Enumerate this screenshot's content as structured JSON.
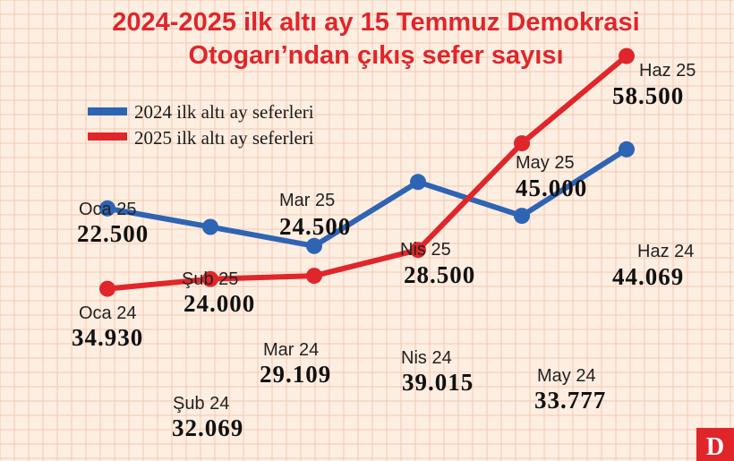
{
  "chart_data": {
    "type": "line",
    "title": "2024-2025 ilk altı ay 15 Temmuz Demokrasi",
    "subtitle": "Otogarı’ndan çıkış sefer sayısı",
    "legend_position": "top-left",
    "grid": true,
    "colors": {
      "series_2024": "#2e64b4",
      "series_2025": "#e0262b",
      "background": "#fdeee2",
      "grid": "#f2c8b0"
    },
    "series": [
      {
        "name": "2024 ilk altı ay seferleri",
        "months": [
          "Oca 24",
          "Şub 24",
          "Mar 24",
          "Nis 24",
          "May 24",
          "Haz 24"
        ],
        "values": [
          34930,
          32069,
          29109,
          39015,
          33777,
          44069
        ],
        "labels": [
          "34.930",
          "32.069",
          "29.109",
          "39.015",
          "33.777",
          "44.069"
        ]
      },
      {
        "name": "2025 ilk altı ay seferleri",
        "months": [
          "Oca 25",
          "Şub 25",
          "Mar 25",
          "Nis 25",
          "May 25",
          "Haz 25"
        ],
        "values": [
          22500,
          24000,
          24500,
          28500,
          45000,
          58500
        ],
        "labels": [
          "22.500",
          "24.000",
          "24.500",
          "28.500",
          "45.000",
          "58.500"
        ]
      }
    ]
  },
  "logo": {
    "text": "D"
  }
}
